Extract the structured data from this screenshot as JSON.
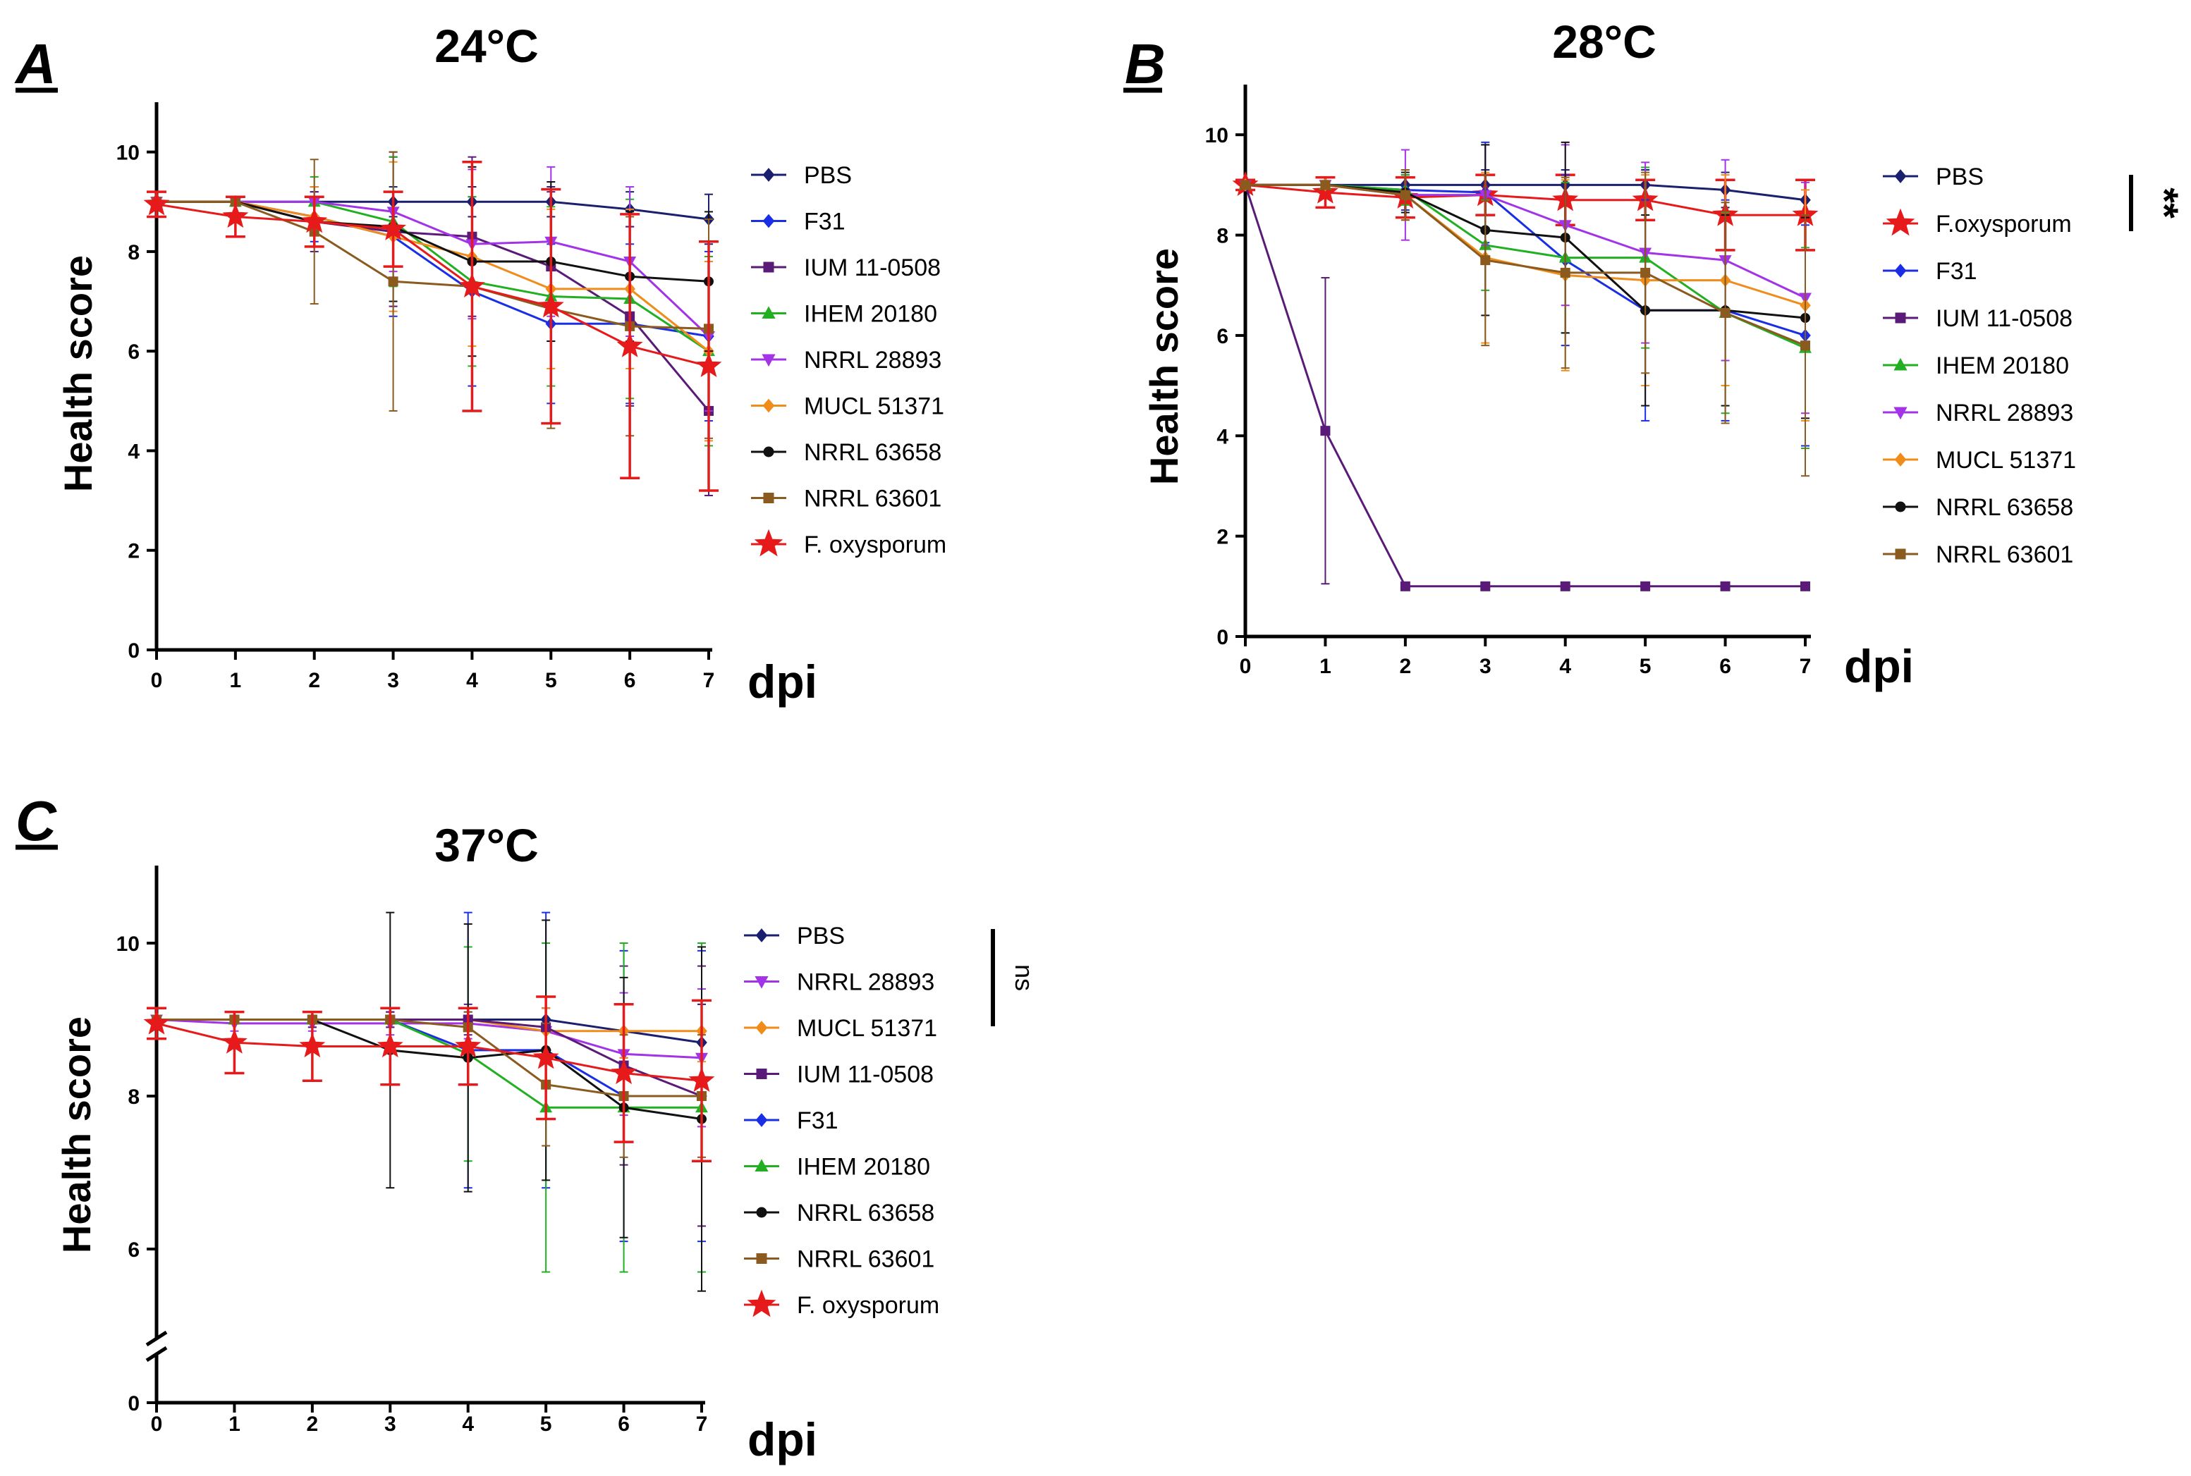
{
  "figure": {
    "colors": {
      "PBS": "#1a1f6e",
      "F31": "#1a2ee6",
      "IUM 11-0508": "#5a1a78",
      "IHEM 20180": "#22b022",
      "NRRL 28893": "#a333e6",
      "MUCL 51371": "#f08c1a",
      "NRRL 63658": "#111111",
      "NRRL 63601": "#8a5a1e",
      "F. oxysporum": "#e61a1a"
    }
  },
  "chart_data": [
    {
      "type": "line",
      "panel_label": "A",
      "title": "24°C",
      "xlabel": "dpi",
      "ylabel": "Health score",
      "x": [
        0,
        1,
        2,
        3,
        4,
        5,
        6,
        7
      ],
      "xticks": [
        "0",
        "1",
        "2",
        "3",
        "4",
        "5",
        "6",
        "7"
      ],
      "ylim": [
        0,
        11
      ],
      "yticks": [
        "0",
        "2",
        "4",
        "6",
        "8",
        "10"
      ],
      "series": [
        {
          "name": "PBS",
          "marker": "diamond",
          "values": [
            9,
            9,
            9,
            9,
            9,
            9,
            8.85,
            8.65
          ],
          "error": [
            0,
            0,
            0.3,
            0.3,
            0.3,
            0.3,
            0.35,
            0.5
          ]
        },
        {
          "name": "F31",
          "marker": "diamond",
          "values": [
            9,
            9,
            8.7,
            8.3,
            7.2,
            6.55,
            6.55,
            6.3
          ],
          "error": [
            0,
            0,
            0.5,
            1.6,
            1.9,
            1.6,
            1.6,
            1.7
          ]
        },
        {
          "name": "IUM 11-0508",
          "marker": "square",
          "values": [
            9,
            9,
            8.6,
            8.4,
            8.3,
            7.7,
            6.7,
            4.8
          ],
          "error": [
            0,
            0,
            0.6,
            1.5,
            1.6,
            1.5,
            1.8,
            1.7
          ]
        },
        {
          "name": "IHEM 20180",
          "marker": "triangle",
          "values": [
            9,
            9,
            9,
            8.6,
            7.4,
            7.1,
            7.05,
            6.0
          ],
          "error": [
            0,
            0,
            0.5,
            1.3,
            1.7,
            1.8,
            2.0,
            1.9
          ]
        },
        {
          "name": "NRRL 28893",
          "marker": "triangle-down",
          "values": [
            9,
            9,
            9,
            8.8,
            8.15,
            8.2,
            7.8,
            6.3
          ],
          "error": [
            0,
            0,
            0.3,
            1.2,
            1.5,
            1.5,
            1.5,
            1.5
          ]
        },
        {
          "name": "MUCL 51371",
          "marker": "diamond",
          "values": [
            9,
            9,
            8.7,
            8.3,
            7.9,
            7.25,
            7.25,
            6.0
          ],
          "error": [
            0,
            0,
            0.6,
            1.5,
            1.8,
            1.6,
            1.6,
            1.8
          ]
        },
        {
          "name": "NRRL 63658",
          "marker": "circle",
          "values": [
            9,
            9,
            8.6,
            8.5,
            7.8,
            7.8,
            7.5,
            7.4
          ],
          "error": [
            0,
            0,
            0.5,
            1.5,
            1.9,
            1.6,
            1.3,
            1.4
          ]
        },
        {
          "name": "NRRL 63601",
          "marker": "square",
          "values": [
            9,
            9,
            8.4,
            7.4,
            7.3,
            6.85,
            6.5,
            6.45
          ],
          "error": [
            0,
            0,
            1.45,
            2.6,
            2.5,
            2.4,
            2.2,
            2.2
          ]
        },
        {
          "name": "F. oxysporum",
          "marker": "star",
          "values": [
            8.95,
            8.7,
            8.6,
            8.45,
            7.3,
            6.9,
            6.1,
            5.7
          ],
          "error": [
            0.25,
            0.4,
            0.5,
            0.75,
            2.5,
            2.35,
            2.65,
            2.5
          ]
        }
      ]
    },
    {
      "type": "line",
      "panel_label": "B",
      "title": "28°C",
      "xlabel": "dpi",
      "ylabel": "Health score",
      "x": [
        0,
        1,
        2,
        3,
        4,
        5,
        6,
        7
      ],
      "xticks": [
        "0",
        "1",
        "2",
        "3",
        "4",
        "5",
        "6",
        "7"
      ],
      "ylim": [
        0,
        11
      ],
      "yticks": [
        "0",
        "2",
        "4",
        "6",
        "8",
        "10"
      ],
      "significance": "**",
      "series": [
        {
          "name": "PBS",
          "marker": "diamond",
          "values": [
            9,
            9,
            9,
            9,
            9,
            9,
            8.9,
            8.7
          ],
          "error": [
            0,
            0,
            0.2,
            0.3,
            0.3,
            0.3,
            0.35,
            0.4
          ]
        },
        {
          "name": "F.oxysporum",
          "marker": "star",
          "values": [
            9,
            8.85,
            8.75,
            8.8,
            8.7,
            8.7,
            8.4,
            8.4
          ],
          "error": [
            0.1,
            0.3,
            0.4,
            0.4,
            0.5,
            0.4,
            0.7,
            0.7
          ]
        },
        {
          "name": "F31",
          "marker": "diamond",
          "values": [
            9,
            9,
            8.9,
            8.85,
            7.5,
            6.5,
            6.5,
            6.0
          ],
          "error": [
            0,
            0,
            0.4,
            1.0,
            1.7,
            2.2,
            2.2,
            2.2
          ]
        },
        {
          "name": "IUM 11-0508",
          "marker": "square",
          "values": [
            9,
            4.1,
            1,
            1,
            1,
            1,
            1,
            1
          ],
          "error": [
            0,
            3.05,
            0,
            0,
            0,
            0,
            0,
            0
          ]
        },
        {
          "name": "IHEM 20180",
          "marker": "triangle",
          "values": [
            9,
            9,
            8.9,
            7.8,
            7.55,
            7.55,
            6.45,
            5.75
          ],
          "error": [
            0,
            0,
            0.3,
            0.9,
            1.5,
            1.8,
            2.0,
            2.0
          ]
        },
        {
          "name": "NRRL 28893",
          "marker": "triangle-down",
          "values": [
            9,
            9,
            8.8,
            8.8,
            8.2,
            7.65,
            7.5,
            6.75
          ],
          "error": [
            0,
            0,
            0.9,
            1.0,
            1.6,
            1.8,
            2.0,
            2.3
          ]
        },
        {
          "name": "MUCL 51371",
          "marker": "diamond",
          "values": [
            9,
            9,
            8.8,
            7.55,
            7.2,
            7.1,
            7.1,
            6.6
          ],
          "error": [
            0,
            0,
            0.5,
            1.7,
            1.9,
            2.1,
            2.1,
            2.3
          ]
        },
        {
          "name": "NRRL 63658",
          "marker": "circle",
          "values": [
            9,
            9,
            8.85,
            8.1,
            7.95,
            6.5,
            6.5,
            6.35
          ],
          "error": [
            0,
            0,
            0.4,
            1.7,
            1.9,
            1.9,
            1.9,
            2.0
          ]
        },
        {
          "name": "NRRL 63601",
          "marker": "square",
          "values": [
            9,
            9,
            8.8,
            7.5,
            7.25,
            7.25,
            6.45,
            5.8
          ],
          "error": [
            0,
            0,
            0.5,
            1.7,
            1.9,
            2.0,
            2.2,
            2.6
          ]
        }
      ]
    },
    {
      "type": "line",
      "panel_label": "C",
      "title": "37°C",
      "xlabel": "dpi",
      "ylabel": "Health score",
      "x": [
        0,
        1,
        2,
        3,
        4,
        5,
        6,
        7
      ],
      "xticks": [
        "0",
        "1",
        "2",
        "3",
        "4",
        "5",
        "6",
        "7"
      ],
      "ylim": [
        5,
        11
      ],
      "axis_break": true,
      "yticks": [
        "0",
        "6",
        "8",
        "10"
      ],
      "significance": "ns",
      "series": [
        {
          "name": "PBS",
          "marker": "diamond",
          "values": [
            9,
            9,
            9,
            9,
            9,
            9,
            8.85,
            8.7
          ],
          "error": [
            0,
            0,
            0.1,
            0.1,
            0.1,
            0.15,
            0.35,
            0.5
          ]
        },
        {
          "name": "NRRL 28893",
          "marker": "triangle-down",
          "values": [
            9,
            8.95,
            8.95,
            8.95,
            8.95,
            8.85,
            8.55,
            8.5
          ],
          "error": [
            0,
            0.1,
            0.1,
            0.15,
            0.2,
            0.3,
            0.8,
            0.9
          ]
        },
        {
          "name": "MUCL 51371",
          "marker": "diamond",
          "values": [
            9,
            9,
            9,
            9,
            9,
            8.85,
            8.85,
            8.85
          ],
          "error": [
            0,
            0,
            0,
            0,
            0.05,
            0.3,
            0.35,
            0.4
          ]
        },
        {
          "name": "IUM 11-0508",
          "marker": "square",
          "values": [
            9,
            9,
            9,
            9,
            9,
            8.9,
            8.4,
            8.0
          ],
          "error": [
            0,
            0,
            0.1,
            0.1,
            0.2,
            0.4,
            1.3,
            1.7
          ]
        },
        {
          "name": "F31",
          "marker": "diamond",
          "values": [
            9,
            9,
            9,
            9,
            8.6,
            8.6,
            8.0,
            8.0
          ],
          "error": [
            0,
            0,
            0,
            0,
            1.8,
            1.8,
            1.9,
            1.9
          ]
        },
        {
          "name": "IHEM 20180",
          "marker": "triangle",
          "values": [
            9,
            9,
            9,
            9,
            8.55,
            7.85,
            7.85,
            7.85
          ],
          "error": [
            0,
            0,
            0,
            0,
            1.4,
            2.15,
            2.15,
            2.15
          ]
        },
        {
          "name": "NRRL 63658",
          "marker": "circle",
          "values": [
            9,
            9,
            9,
            8.6,
            8.5,
            8.6,
            7.85,
            7.7
          ],
          "error": [
            0,
            0,
            0,
            1.8,
            1.75,
            1.7,
            1.7,
            2.25
          ]
        },
        {
          "name": "NRRL 63601",
          "marker": "square",
          "values": [
            9,
            9,
            9,
            9,
            8.9,
            8.15,
            8.0,
            8.0
          ],
          "error": [
            0,
            0,
            0,
            0,
            0.2,
            0.8,
            0.8,
            0.8
          ]
        },
        {
          "name": "F. oxysporum",
          "marker": "star",
          "values": [
            8.95,
            8.7,
            8.65,
            8.65,
            8.65,
            8.5,
            8.3,
            8.2
          ],
          "error": [
            0.2,
            0.4,
            0.45,
            0.5,
            0.5,
            0.8,
            0.9,
            1.05
          ]
        }
      ]
    }
  ]
}
